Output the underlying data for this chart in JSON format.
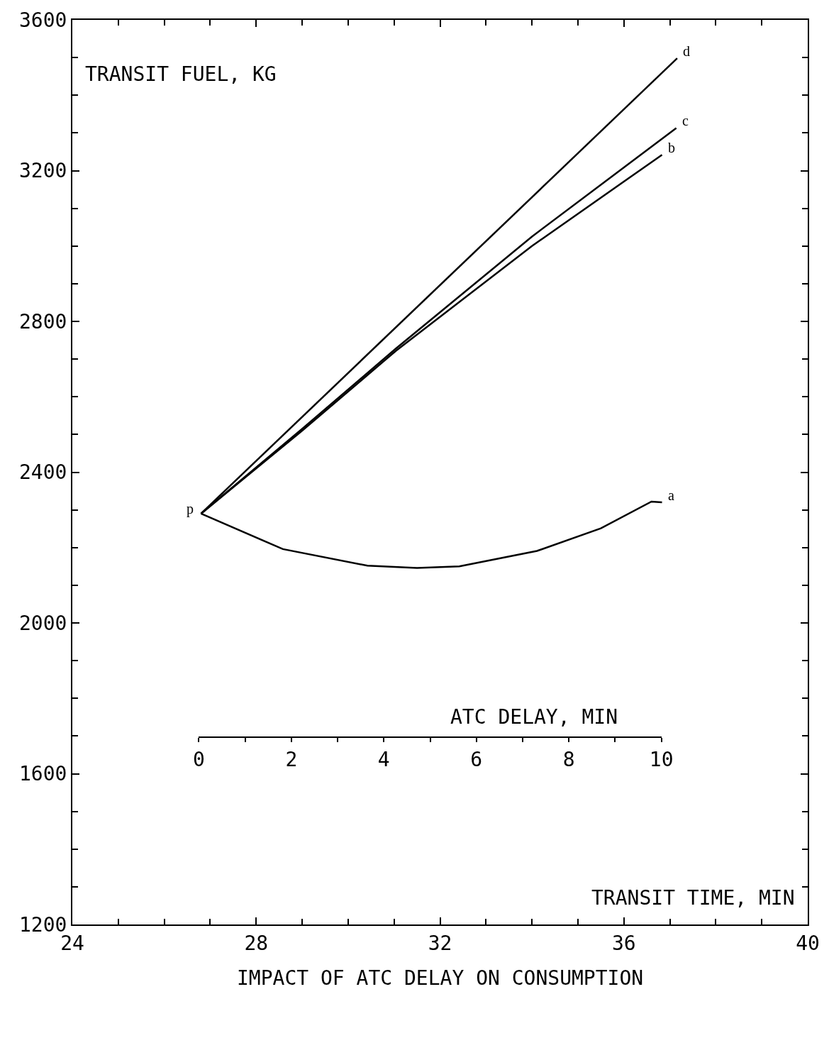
{
  "chart_data": {
    "type": "line",
    "title": "IMPACT OF ATC DELAY ON CONSUMPTION",
    "xlabel": "TRANSIT TIME, MIN",
    "ylabel": "TRANSIT FUEL, KG",
    "x2label": "ATC DELAY, MIN",
    "xlim": [
      24,
      40
    ],
    "xticks": [
      24,
      28,
      32,
      36,
      40
    ],
    "ylim": [
      1200,
      3600
    ],
    "yticks": [
      1200,
      1600,
      2000,
      2400,
      2800,
      3200,
      3600
    ],
    "x2lim": [
      0,
      10
    ],
    "x2ticks": [
      0,
      2,
      4,
      6,
      8,
      10
    ],
    "grid": false,
    "legend": false,
    "marker": "none",
    "line_style": "solid",
    "series": [
      {
        "name": "a",
        "color": "#000000",
        "x": [
          26.8,
          28.58,
          30.42,
          31.5,
          32.42,
          34.11,
          35.5,
          36.6,
          36.83
        ],
        "values": [
          2290,
          2196,
          2152,
          2146,
          2150,
          2191,
          2251,
          2322,
          2320
        ]
      },
      {
        "name": "b",
        "color": "#000000",
        "x": [
          26.8,
          29,
          31.04,
          34,
          36.83
        ],
        "values": [
          2290,
          2510,
          2722,
          3000,
          3242
        ]
      },
      {
        "name": "c",
        "color": "#000000",
        "x": [
          26.8,
          29,
          31.04,
          34,
          37.14
        ],
        "values": [
          2290,
          2515,
          2728,
          3025,
          3313
        ]
      },
      {
        "name": "d",
        "color": "#000000",
        "x": [
          26.8,
          37.16
        ],
        "values": [
          2290,
          3498
        ]
      }
    ],
    "annotations": [
      {
        "text": "p",
        "x": 26.8,
        "y": 2290
      }
    ]
  }
}
